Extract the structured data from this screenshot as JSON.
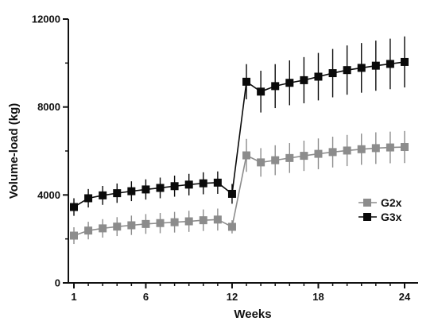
{
  "chart_data": {
    "type": "line",
    "xlabel": "Weeks",
    "ylabel": "Volume-load (kg)",
    "x_ticks": [
      1,
      6,
      12,
      18,
      24
    ],
    "y_ticks": [
      0,
      4000,
      8000,
      12000
    ],
    "xlim": [
      1,
      24
    ],
    "ylim": [
      0,
      12000
    ],
    "grid": false,
    "legend_position": "right-middle",
    "x": [
      1,
      2,
      3,
      4,
      5,
      6,
      7,
      8,
      9,
      10,
      11,
      12,
      13,
      14,
      15,
      16,
      17,
      18,
      19,
      20,
      21,
      22,
      23,
      24
    ],
    "series": [
      {
        "name": "G2x",
        "color": "#8c8c8c",
        "values": [
          2150,
          2380,
          2480,
          2560,
          2620,
          2680,
          2720,
          2760,
          2800,
          2850,
          2880,
          2550,
          5800,
          5480,
          5580,
          5680,
          5780,
          5870,
          5950,
          6020,
          6080,
          6130,
          6160,
          6180
        ],
        "errors": [
          380,
          400,
          420,
          430,
          440,
          450,
          460,
          470,
          480,
          490,
          500,
          300,
          750,
          650,
          680,
          680,
          690,
          700,
          700,
          710,
          710,
          720,
          720,
          730
        ]
      },
      {
        "name": "G3x",
        "color": "#0a0a0a",
        "values": [
          3450,
          3850,
          3980,
          4080,
          4170,
          4250,
          4320,
          4400,
          4470,
          4530,
          4560,
          4050,
          9150,
          8700,
          8950,
          9100,
          9220,
          9380,
          9540,
          9680,
          9780,
          9880,
          9960,
          10050
        ],
        "errors": [
          400,
          420,
          430,
          440,
          450,
          460,
          470,
          480,
          490,
          500,
          510,
          450,
          800,
          950,
          1000,
          1020,
          1050,
          1080,
          1100,
          1120,
          1130,
          1140,
          1150,
          1160
        ]
      }
    ]
  }
}
